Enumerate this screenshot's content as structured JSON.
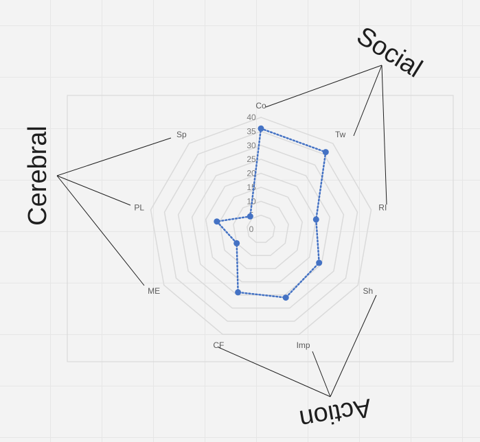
{
  "chart_data": {
    "type": "radar",
    "categories": [
      "Co",
      "Tw",
      "RI",
      "Sh",
      "Imp",
      "CF",
      "ME",
      "PL",
      "Sp"
    ],
    "series": [
      {
        "values": [
          36,
          36,
          20,
          24,
          26,
          24,
          10,
          16,
          6
        ],
        "color": "#4472c4",
        "line_style": "dotted",
        "markers": "circle"
      }
    ],
    "rlim": [
      0,
      40
    ],
    "ticks": [
      "0",
      "5",
      "10",
      "15",
      "20",
      "25",
      "30",
      "35",
      "40"
    ],
    "grid": true,
    "grid_shape": "polygon"
  },
  "annotations": {
    "social": {
      "label": "Social",
      "targets": [
        "Co",
        "Tw",
        "RI"
      ]
    },
    "cerebral": {
      "label": "Cerebral",
      "targets": [
        "Sp",
        "PL",
        "ME"
      ]
    },
    "action": {
      "label": "Action",
      "targets": [
        "Sh",
        "Imp",
        "CF"
      ]
    }
  }
}
